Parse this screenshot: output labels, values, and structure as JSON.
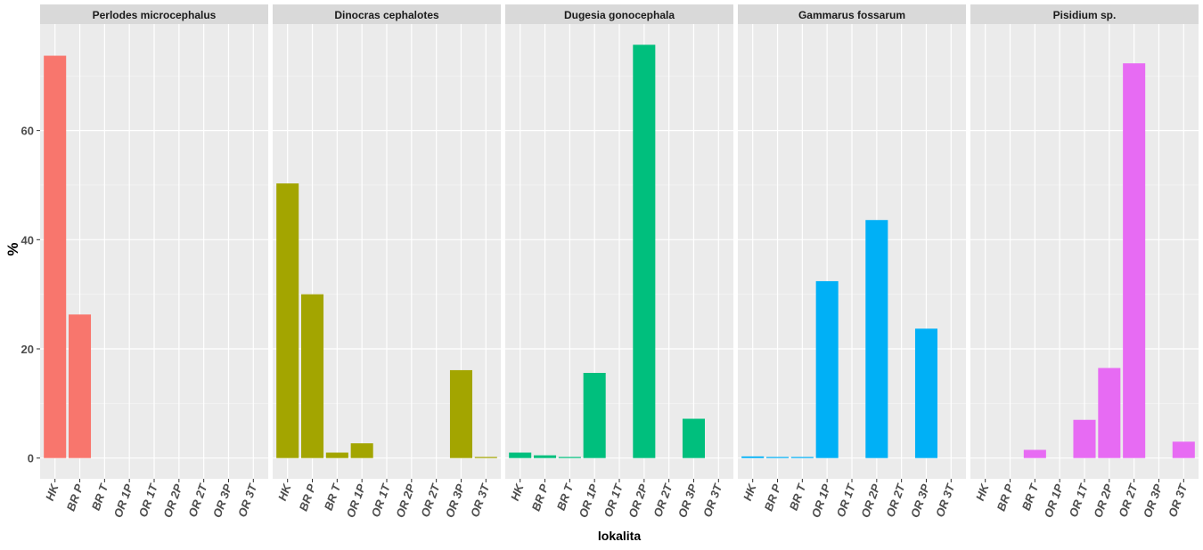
{
  "chart_data": {
    "type": "bar",
    "facets": true,
    "ylabel": "%",
    "xlabel": "lokalita",
    "ylim": [
      -3.8,
      79.5
    ],
    "yticks": [
      0,
      20,
      40,
      60
    ],
    "grid": true,
    "legend": "none",
    "categories": [
      "HK",
      "BR P",
      "BR T",
      "OR 1P",
      "OR 1T",
      "OR 2P",
      "OR 2T",
      "OR 3P",
      "OR 3T"
    ],
    "series": [
      {
        "name": "Perlodes microcephalus",
        "color": "#F8766D",
        "values": [
          73.7,
          26.3,
          0,
          0,
          0,
          0,
          0,
          0,
          0
        ]
      },
      {
        "name": "Dinocras cephalotes",
        "color": "#A3A500",
        "values": [
          50.3,
          30.0,
          1.0,
          2.7,
          0,
          0,
          0,
          16.1,
          0.2
        ]
      },
      {
        "name": "Dugesia gonocephala",
        "color": "#00BF7D",
        "values": [
          1.0,
          0.5,
          0.2,
          15.6,
          0,
          75.7,
          0,
          7.2,
          0
        ]
      },
      {
        "name": "Gammarus fossarum",
        "color": "#00B0F6",
        "values": [
          0.3,
          0.2,
          0.2,
          32.4,
          0,
          43.6,
          0,
          23.7,
          0
        ]
      },
      {
        "name": "Pisidium sp.",
        "color": "#E76BF3",
        "values": [
          0,
          0,
          1.5,
          0,
          7.0,
          16.5,
          72.3,
          0,
          3.0
        ]
      }
    ]
  }
}
